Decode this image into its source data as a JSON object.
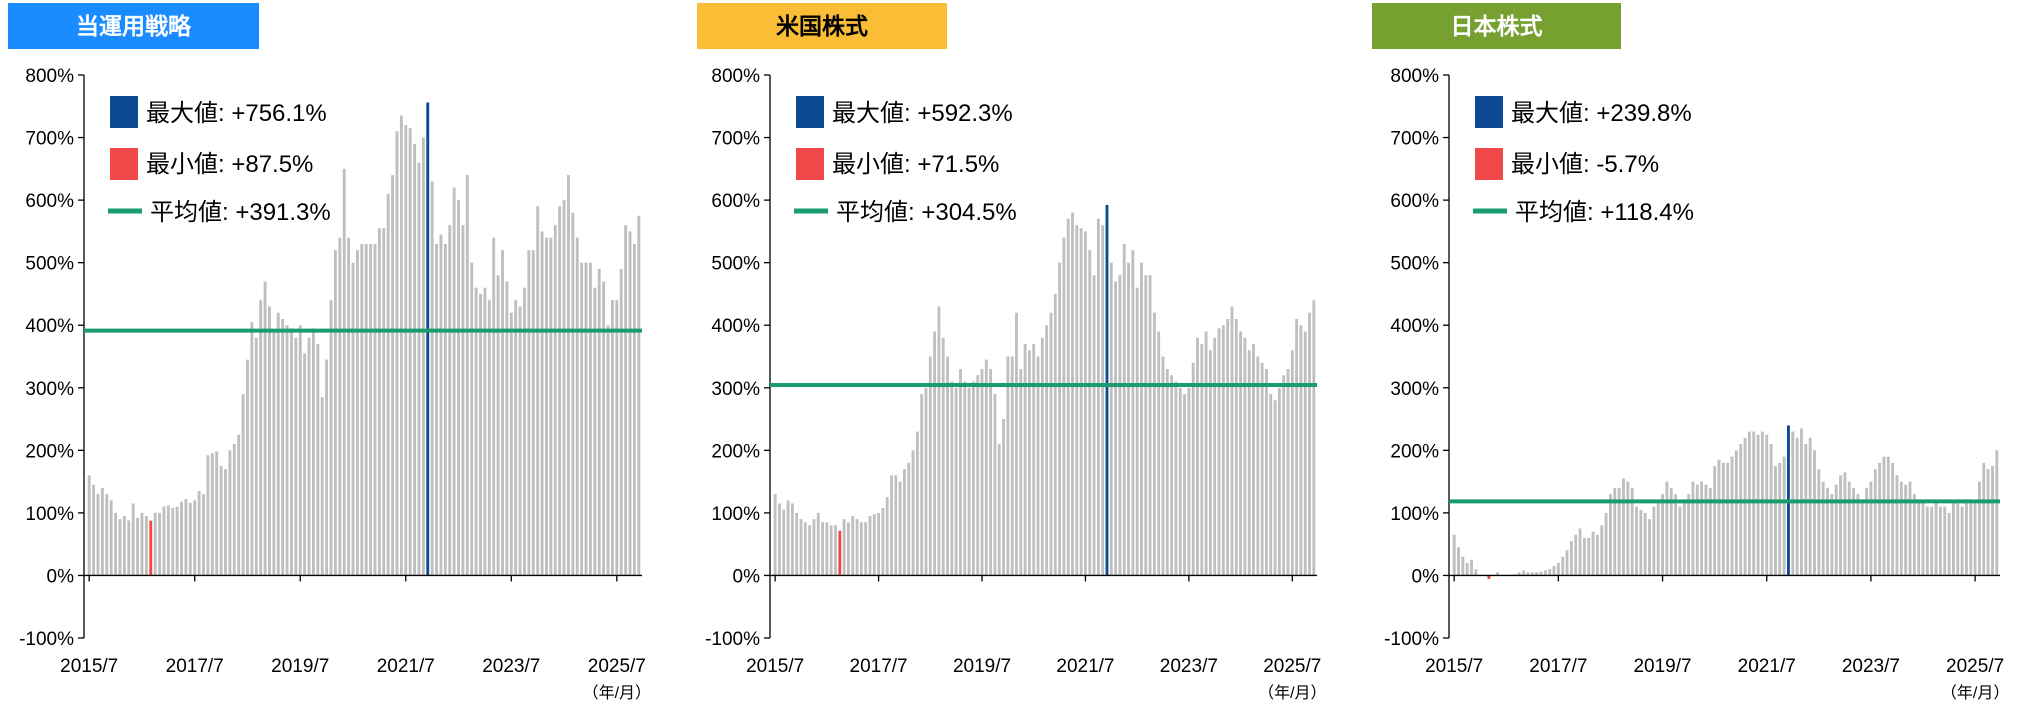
{
  "chart_data": [
    {
      "type": "bar",
      "title": "当運用戦略",
      "title_color": "#1a8cff",
      "title_text_color": "#ffffff",
      "color": "#bfbfbf",
      "categories": [
        "2015/7",
        null,
        null,
        null,
        null,
        null,
        null,
        null,
        null,
        null,
        null,
        null,
        null,
        null,
        null,
        null,
        null,
        null,
        null,
        null,
        null,
        null,
        null,
        null,
        "2017/7",
        null,
        null,
        null,
        null,
        null,
        null,
        null,
        null,
        null,
        null,
        null,
        null,
        null,
        null,
        null,
        null,
        null,
        null,
        null,
        null,
        null,
        null,
        null,
        "2019/7",
        null,
        null,
        null,
        null,
        null,
        null,
        null,
        null,
        null,
        null,
        null,
        null,
        null,
        null,
        null,
        null,
        null,
        null,
        null,
        null,
        null,
        null,
        null,
        "2021/7",
        null,
        null,
        null,
        null,
        null,
        null,
        null,
        null,
        null,
        null,
        null,
        null,
        null,
        null,
        null,
        null,
        null,
        null,
        null,
        null,
        null,
        null,
        null,
        "2023/7",
        null,
        null,
        null,
        null,
        null,
        null,
        null,
        null,
        null,
        null,
        null,
        null,
        null,
        null,
        null,
        null,
        null,
        null,
        null,
        null,
        null,
        null,
        null,
        "2025/7",
        null,
        null,
        null,
        null,
        null
      ],
      "values": [
        160,
        145,
        130,
        140,
        130,
        120,
        100,
        90,
        95,
        88,
        115,
        92,
        100,
        95,
        87.5,
        100,
        100,
        110,
        112,
        108,
        110,
        118,
        122,
        116,
        120,
        135,
        130,
        192,
        195,
        198,
        175,
        170,
        200,
        210,
        225,
        290,
        345,
        405,
        380,
        440,
        470,
        430,
        390,
        420,
        410,
        400,
        395,
        380,
        400,
        355,
        380,
        395,
        370,
        285,
        345,
        440,
        520,
        540,
        650,
        540,
        500,
        520,
        530,
        530,
        530,
        530,
        555,
        555,
        610,
        640,
        710,
        735,
        720,
        715,
        690,
        660,
        700,
        756.1,
        630,
        530,
        545,
        530,
        560,
        620,
        600,
        560,
        640,
        500,
        460,
        450,
        460,
        440,
        540,
        480,
        520,
        470,
        420,
        440,
        430,
        460,
        520,
        520,
        590,
        550,
        540,
        540,
        560,
        590,
        600,
        640,
        580,
        540,
        500,
        500,
        500,
        460,
        490,
        470,
        400,
        440,
        440,
        490,
        560,
        550,
        530,
        575
      ],
      "max": {
        "value": 756.1,
        "label": "最大値: +756.1%",
        "color": "#0d4a94"
      },
      "min": {
        "value": 87.5,
        "label": "最小値: +87.5%",
        "color": "#f04848"
      },
      "mean": {
        "value": 391.3,
        "label": "平均値: +391.3%",
        "color": "#1a9c6e"
      },
      "x_label": "（年/月）",
      "ylim": [
        -100,
        800
      ],
      "yticks": [
        {
          "value": -100,
          "label": "-100%"
        },
        {
          "value": 0,
          "label": "0%"
        },
        {
          "value": 100,
          "label": "100%"
        },
        {
          "value": 200,
          "label": "200%"
        },
        {
          "value": 300,
          "label": "300%"
        },
        {
          "value": 400,
          "label": "400%"
        },
        {
          "value": 500,
          "label": "500%"
        },
        {
          "value": 600,
          "label": "600%"
        },
        {
          "value": 700,
          "label": "700%"
        },
        {
          "value": 800,
          "label": "800%"
        }
      ]
    },
    {
      "type": "bar",
      "title": "米国株式",
      "title_color": "#fbbd36",
      "title_text_color": "#000000",
      "color": "#bfbfbf",
      "categories": [
        "2015/7",
        null,
        null,
        null,
        null,
        null,
        null,
        null,
        null,
        null,
        null,
        null,
        null,
        null,
        null,
        null,
        null,
        null,
        null,
        null,
        null,
        null,
        null,
        null,
        "2017/7",
        null,
        null,
        null,
        null,
        null,
        null,
        null,
        null,
        null,
        null,
        null,
        null,
        null,
        null,
        null,
        null,
        null,
        null,
        null,
        null,
        null,
        null,
        null,
        "2019/7",
        null,
        null,
        null,
        null,
        null,
        null,
        null,
        null,
        null,
        null,
        null,
        null,
        null,
        null,
        null,
        null,
        null,
        null,
        null,
        null,
        null,
        null,
        null,
        "2021/7",
        null,
        null,
        null,
        null,
        null,
        null,
        null,
        null,
        null,
        null,
        null,
        null,
        null,
        null,
        null,
        null,
        null,
        null,
        null,
        null,
        null,
        null,
        null,
        "2023/7",
        null,
        null,
        null,
        null,
        null,
        null,
        null,
        null,
        null,
        null,
        null,
        null,
        null,
        null,
        null,
        null,
        null,
        null,
        null,
        null,
        null,
        null,
        null,
        "2025/7",
        null,
        null,
        null,
        null,
        null
      ],
      "values": [
        130,
        115,
        105,
        120,
        115,
        100,
        90,
        85,
        80,
        90,
        100,
        85,
        85,
        80,
        80,
        71.5,
        90,
        85,
        95,
        90,
        85,
        85,
        95,
        98,
        100,
        108,
        125,
        160,
        160,
        150,
        170,
        180,
        200,
        230,
        290,
        300,
        350,
        390,
        430,
        380,
        350,
        310,
        300,
        330,
        310,
        300,
        310,
        320,
        330,
        345,
        330,
        290,
        210,
        250,
        350,
        350,
        420,
        330,
        370,
        360,
        370,
        350,
        380,
        400,
        420,
        450,
        500,
        540,
        570,
        580,
        560,
        555,
        550,
        520,
        480,
        570,
        560,
        592.3,
        500,
        470,
        480,
        530,
        500,
        520,
        460,
        500,
        480,
        480,
        420,
        390,
        350,
        330,
        320,
        310,
        300,
        290,
        300,
        340,
        380,
        370,
        390,
        360,
        380,
        395,
        400,
        410,
        430,
        410,
        390,
        380,
        360,
        370,
        350,
        340,
        330,
        290,
        280,
        300,
        320,
        330,
        360,
        410,
        400,
        390,
        420,
        440
      ],
      "max": {
        "value": 592.3,
        "label": "最大値: +592.3%",
        "color": "#0d4a94"
      },
      "min": {
        "value": 71.5,
        "label": "最小値: +71.5%",
        "color": "#f04848"
      },
      "mean": {
        "value": 304.5,
        "label": "平均値: +304.5%",
        "color": "#1a9c6e"
      },
      "x_label": "（年/月）",
      "ylim": [
        -100,
        800
      ],
      "yticks": [
        {
          "value": -100,
          "label": "-100%"
        },
        {
          "value": 0,
          "label": "0%"
        },
        {
          "value": 100,
          "label": "100%"
        },
        {
          "value": 200,
          "label": "200%"
        },
        {
          "value": 300,
          "label": "300%"
        },
        {
          "value": 400,
          "label": "400%"
        },
        {
          "value": 500,
          "label": "500%"
        },
        {
          "value": 600,
          "label": "600%"
        },
        {
          "value": 700,
          "label": "700%"
        },
        {
          "value": 800,
          "label": "800%"
        }
      ]
    },
    {
      "type": "bar",
      "title": "日本株式",
      "title_color": "#76a030",
      "title_text_color": "#ffffff",
      "color": "#bfbfbf",
      "categories": [
        "2015/7",
        null,
        null,
        null,
        null,
        null,
        null,
        null,
        null,
        null,
        null,
        null,
        null,
        null,
        null,
        null,
        null,
        null,
        null,
        null,
        null,
        null,
        null,
        null,
        "2017/7",
        null,
        null,
        null,
        null,
        null,
        null,
        null,
        null,
        null,
        null,
        null,
        null,
        null,
        null,
        null,
        null,
        null,
        null,
        null,
        null,
        null,
        null,
        null,
        "2019/7",
        null,
        null,
        null,
        null,
        null,
        null,
        null,
        null,
        null,
        null,
        null,
        null,
        null,
        null,
        null,
        null,
        null,
        null,
        null,
        null,
        null,
        null,
        null,
        "2021/7",
        null,
        null,
        null,
        null,
        null,
        null,
        null,
        null,
        null,
        null,
        null,
        null,
        null,
        null,
        null,
        null,
        null,
        null,
        null,
        null,
        null,
        null,
        null,
        "2023/7",
        null,
        null,
        null,
        null,
        null,
        null,
        null,
        null,
        null,
        null,
        null,
        null,
        null,
        null,
        null,
        null,
        null,
        null,
        null,
        null,
        null,
        null,
        null,
        "2025/7",
        null,
        null,
        null,
        null,
        null
      ],
      "values": [
        65,
        45,
        30,
        20,
        25,
        10,
        0,
        0,
        -5.7,
        0,
        5,
        0,
        0,
        0,
        2,
        5,
        8,
        5,
        5,
        5,
        6,
        8,
        10,
        15,
        20,
        30,
        40,
        55,
        65,
        75,
        60,
        60,
        70,
        65,
        80,
        100,
        130,
        140,
        140,
        155,
        150,
        140,
        110,
        105,
        100,
        90,
        110,
        120,
        130,
        150,
        140,
        130,
        110,
        120,
        130,
        150,
        145,
        150,
        145,
        140,
        175,
        185,
        180,
        180,
        190,
        200,
        210,
        220,
        230,
        230,
        225,
        230,
        225,
        210,
        175,
        180,
        190,
        239.8,
        230,
        220,
        235,
        210,
        220,
        200,
        170,
        150,
        140,
        130,
        145,
        160,
        165,
        150,
        140,
        130,
        120,
        140,
        150,
        170,
        180,
        190,
        190,
        180,
        160,
        150,
        145,
        150,
        130,
        120,
        120,
        110,
        110,
        120,
        110,
        110,
        100,
        120,
        115,
        110,
        120,
        115,
        120,
        150,
        180,
        170,
        175,
        200
      ],
      "max": {
        "value": 239.8,
        "label": "最大値: +239.8%",
        "color": "#0d4a94"
      },
      "min": {
        "value": -5.7,
        "label": "最小値: -5.7%",
        "color": "#f04848"
      },
      "mean": {
        "value": 118.4,
        "label": "平均値: +118.4%",
        "color": "#1a9c6e"
      },
      "x_label": "（年/月）",
      "ylim": [
        -100,
        800
      ],
      "yticks": [
        {
          "value": -100,
          "label": "-100%"
        },
        {
          "value": 0,
          "label": "0%"
        },
        {
          "value": 100,
          "label": "100%"
        },
        {
          "value": 200,
          "label": "200%"
        },
        {
          "value": 300,
          "label": "300%"
        },
        {
          "value": 400,
          "label": "400%"
        },
        {
          "value": 500,
          "label": "500%"
        },
        {
          "value": 600,
          "label": "600%"
        },
        {
          "value": 700,
          "label": "700%"
        },
        {
          "value": 800,
          "label": "800%"
        }
      ]
    }
  ]
}
